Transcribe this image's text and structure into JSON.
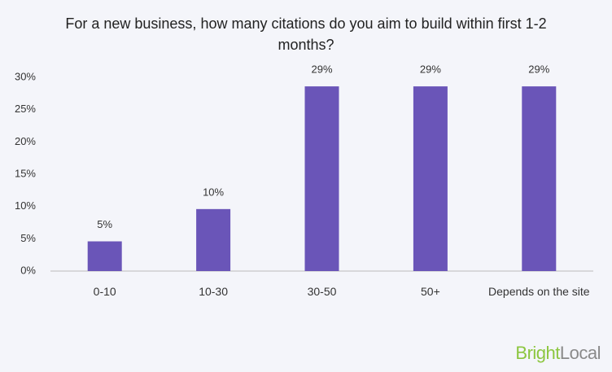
{
  "chart_data": {
    "type": "bar",
    "title": "For a new business, how many citations do you aim to build within first 1-2 months?",
    "categories": [
      "0-10",
      "10-30",
      "30-50",
      "50+",
      "Depends on the site"
    ],
    "values": [
      4.6,
      9.6,
      28.6,
      28.6,
      28.6
    ],
    "value_labels": [
      "5%",
      "10%",
      "29%",
      "29%",
      "29%"
    ],
    "color": "#6a55b8",
    "ylim": [
      0,
      30
    ],
    "yticks": [
      {
        "value": 0,
        "label": "0%"
      },
      {
        "value": 5,
        "label": "5%"
      },
      {
        "value": 10,
        "label": "10%"
      },
      {
        "value": 15,
        "label": "15%"
      },
      {
        "value": 20,
        "label": "20%"
      },
      {
        "value": 25,
        "label": "25%"
      },
      {
        "value": 30,
        "label": "30%"
      }
    ],
    "grid": false
  },
  "logo": {
    "first": "Bright",
    "second": "Local"
  }
}
